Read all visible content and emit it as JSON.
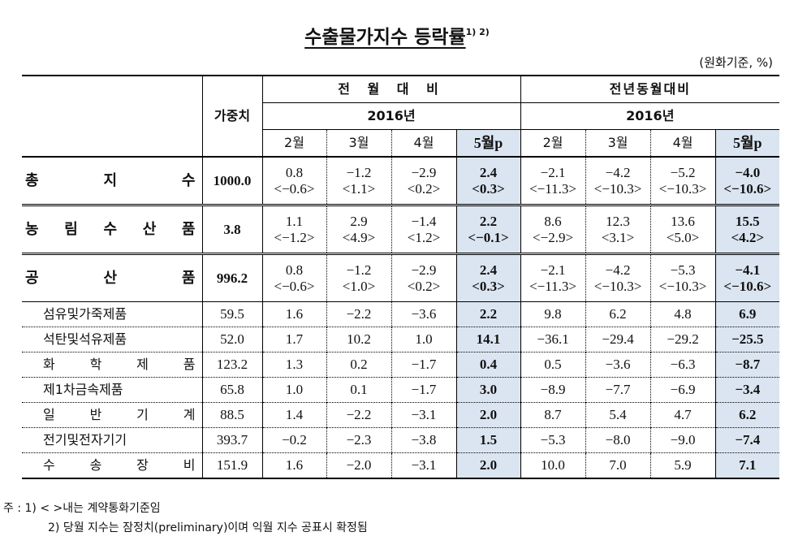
{
  "title": "수출물가지수 등락률",
  "title_sup": "1) 2)",
  "unit": "(원화기준, %)",
  "header": {
    "weight_label": "가중치",
    "group_mom": "전 월 대 비",
    "group_yoy": "전년동월대비",
    "year_mom": "2016년",
    "year_yoy": "2016년",
    "months": [
      "2월",
      "3월",
      "4월",
      "5월p",
      "2월",
      "3월",
      "4월",
      "5월p"
    ]
  },
  "major_rows": [
    {
      "label": "총 지 수",
      "weight": "1000.0",
      "top": [
        "0.8",
        "−1.2",
        "−2.9",
        "2.4",
        "−2.1",
        "−4.2",
        "−5.2",
        "−4.0"
      ],
      "bottom": [
        "<−0.6>",
        "<1.1>",
        "<0.2>",
        "<0.3>",
        "<−11.3>",
        "<−10.3>",
        "<−10.3>",
        "<−10.6>"
      ]
    },
    {
      "label": "농 림 수 산 품",
      "weight": "3.8",
      "top": [
        "1.1",
        "2.9",
        "−1.4",
        "2.2",
        "8.6",
        "12.3",
        "13.6",
        "15.5"
      ],
      "bottom": [
        "<−1.2>",
        "<4.9>",
        "<1.2>",
        "<−0.1>",
        "<−2.9>",
        "<3.1>",
        "<5.0>",
        "<4.2>"
      ]
    },
    {
      "label": "공 산 품",
      "weight": "996.2",
      "top": [
        "0.8",
        "−1.2",
        "−2.9",
        "2.4",
        "−2.1",
        "−4.2",
        "−5.3",
        "−4.1"
      ],
      "bottom": [
        "<−0.6>",
        "<1.0>",
        "<0.2>",
        "<0.3>",
        "<−11.3>",
        "<−10.3>",
        "<−10.3>",
        "<−10.6>"
      ]
    }
  ],
  "sub_rows": [
    {
      "label": "섬유및가죽제품",
      "weight": "59.5",
      "values": [
        "1.6",
        "−2.2",
        "−3.6",
        "2.2",
        "9.8",
        "6.2",
        "4.8",
        "6.9"
      ]
    },
    {
      "label": "석탄및석유제품",
      "weight": "52.0",
      "values": [
        "1.7",
        "10.2",
        "1.0",
        "14.1",
        "−36.1",
        "−29.4",
        "−29.2",
        "−25.5"
      ]
    },
    {
      "label": "화 학 제 품",
      "weight": "123.2",
      "values": [
        "1.3",
        "0.2",
        "−1.7",
        "0.4",
        "0.5",
        "−3.6",
        "−6.3",
        "−8.7"
      ]
    },
    {
      "label": "제1차금속제품",
      "weight": "65.8",
      "values": [
        "1.0",
        "0.1",
        "−1.7",
        "3.0",
        "−8.9",
        "−7.7",
        "−6.9",
        "−3.4"
      ]
    },
    {
      "label": "일 반 기 계",
      "weight": "88.5",
      "values": [
        "1.4",
        "−2.2",
        "−3.1",
        "2.0",
        "8.7",
        "5.4",
        "4.7",
        "6.2"
      ]
    },
    {
      "label": "전기및전자기기",
      "weight": "393.7",
      "values": [
        "−0.2",
        "−2.3",
        "−3.8",
        "1.5",
        "−5.3",
        "−8.0",
        "−9.0",
        "−7.4"
      ]
    },
    {
      "label": "수 송 장 비",
      "weight": "151.9",
      "values": [
        "1.6",
        "−2.0",
        "−3.1",
        "2.0",
        "10.0",
        "7.0",
        "5.9",
        "7.1"
      ]
    }
  ],
  "notes": {
    "n1": "주 : 1) < >내는 계약통화기준임",
    "n2": "2) 당월 지수는 잠정치(preliminary)이며 익월 지수 공표시 확정됨"
  },
  "colors": {
    "highlight": "#dbe5f1"
  }
}
